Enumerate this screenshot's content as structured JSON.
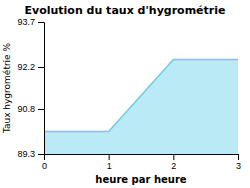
{
  "chart_data": {
    "type": "area",
    "title": "Evolution du taux d'hygrométrie",
    "xlabel": "heure par heure",
    "ylabel": "Taux hygrométrie %",
    "x": [
      0,
      1,
      2,
      3
    ],
    "values": [
      90.05,
      90.05,
      92.45,
      92.45
    ],
    "color": "#66d0ea",
    "xlim": [
      0,
      3
    ],
    "ylim": [
      89.3,
      93.7
    ],
    "xticks": [
      0,
      1,
      2,
      3
    ],
    "yticks": [
      89.3,
      90.8,
      92.2,
      93.7
    ],
    "grid": false
  }
}
